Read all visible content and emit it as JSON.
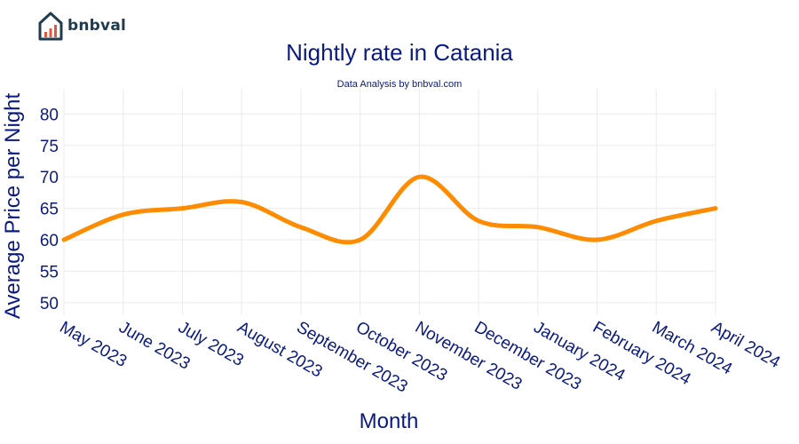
{
  "brand": {
    "name": "bnbval",
    "logo_icon": "house-chart-icon",
    "colors": {
      "house": "#1f3b4d",
      "bars": "#e2553f"
    }
  },
  "chart_data": {
    "type": "line",
    "title": "Nightly rate in Catania",
    "subtitle": "Data Analysis by bnbval.com",
    "xlabel": "Month",
    "ylabel": "Average Price per Night",
    "categories": [
      "May 2023",
      "June 2023",
      "July 2023",
      "August 2023",
      "September 2023",
      "October 2023",
      "November 2023",
      "December 2023",
      "January 2024",
      "February 2024",
      "March 2024",
      "April 2024"
    ],
    "series": [
      {
        "values": [
          60,
          64,
          65,
          66,
          62,
          60,
          70,
          63,
          62,
          60,
          63,
          65
        ],
        "color": "#ff8c00"
      }
    ],
    "yticks": [
      50,
      55,
      60,
      65,
      70,
      75,
      80
    ],
    "ylim": [
      48,
      84
    ],
    "grid": true,
    "legend": "none"
  }
}
